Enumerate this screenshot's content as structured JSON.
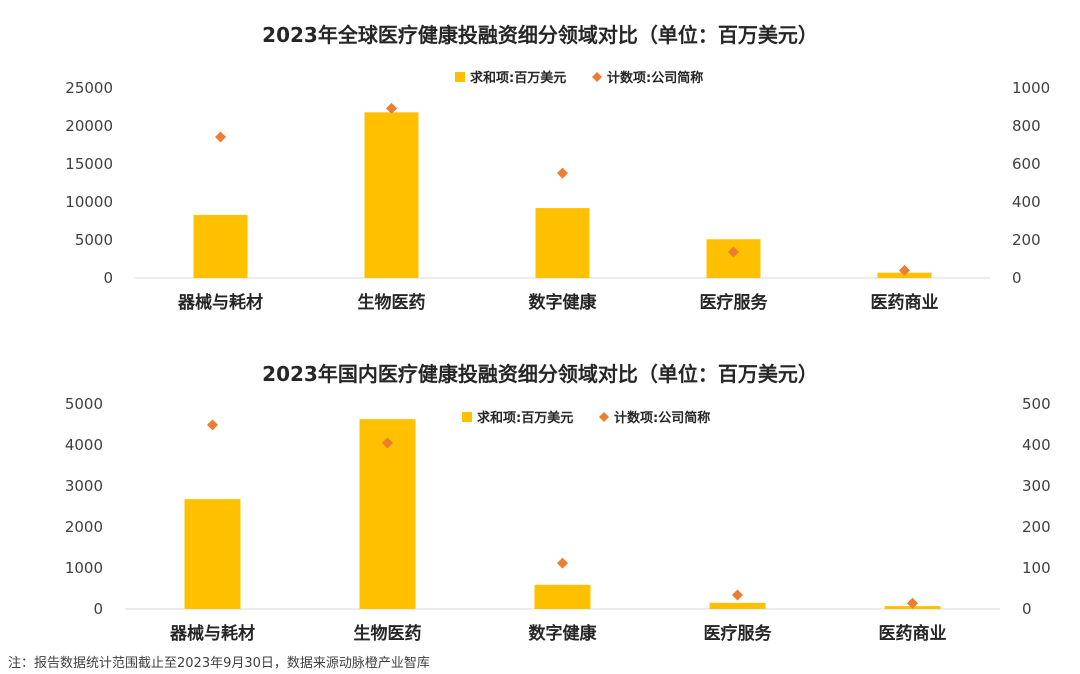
{
  "colors": {
    "bar": "#FFC000",
    "marker": "#ED7D31",
    "axis": "#D9D9D9"
  },
  "chart_data": [
    {
      "type": "bar",
      "title": "2023年全球医疗健康投融资细分领域对比（单位：百万美元）",
      "categories": [
        "器械与耗材",
        "生物医药",
        "数字健康",
        "医疗服务",
        "医药商业"
      ],
      "series": [
        {
          "name": "求和项:百万美元",
          "axis": "left",
          "kind": "bar",
          "values": [
            8300,
            21800,
            9200,
            5100,
            700
          ]
        },
        {
          "name": "计数项:公司简称",
          "axis": "right",
          "kind": "scatter",
          "values": [
            742,
            893,
            552,
            137,
            40
          ]
        }
      ],
      "ylim_left": [
        0,
        25000
      ],
      "yticks_left": [
        0,
        5000,
        10000,
        15000,
        20000,
        25000
      ],
      "ylim_right": [
        0,
        1000
      ],
      "yticks_right": [
        0,
        200,
        400,
        600,
        800,
        1000
      ],
      "legend": "top-center",
      "grid": false
    },
    {
      "type": "bar",
      "title": "2023年国内医疗健康投融资细分领域对比（单位：百万美元）",
      "categories": [
        "器械与耗材",
        "生物医药",
        "数字健康",
        "医疗服务",
        "医药商业"
      ],
      "series": [
        {
          "name": "求和项:百万美元",
          "axis": "left",
          "kind": "bar",
          "values": [
            2680,
            4630,
            590,
            150,
            70
          ]
        },
        {
          "name": "计数项:公司简称",
          "axis": "right",
          "kind": "scatter",
          "values": [
            449,
            405,
            112,
            34,
            14
          ]
        }
      ],
      "ylim_left": [
        0,
        5000
      ],
      "yticks_left": [
        0,
        1000,
        2000,
        3000,
        4000,
        5000
      ],
      "ylim_right": [
        0,
        500
      ],
      "yticks_right": [
        0,
        100,
        200,
        300,
        400,
        500
      ],
      "legend": "top-center",
      "grid": false
    }
  ],
  "footnote": "注：报告数据统计范围截止至2023年9月30日，数据来源动脉橙产业智库"
}
